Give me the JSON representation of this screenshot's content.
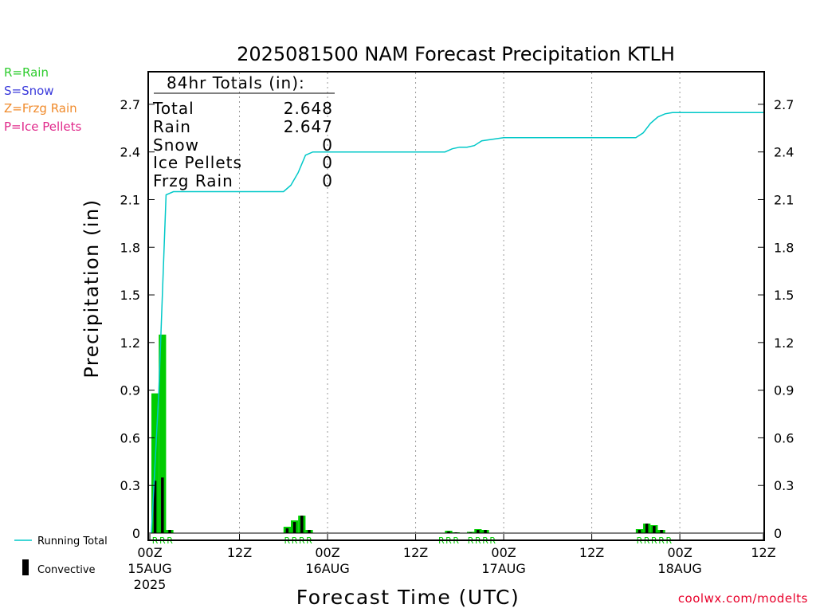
{
  "title": "2025081500 NAM Forecast Precipitation KTLH",
  "ptype_legend": [
    {
      "label": "R=Rain",
      "color": "#2ecc2e"
    },
    {
      "label": "S=Snow",
      "color": "#3a3adb"
    },
    {
      "label": "Z=Frzg Rain",
      "color": "#f08a2a"
    },
    {
      "label": "P=Ice Pellets",
      "color": "#e0288a"
    }
  ],
  "totals_box": {
    "header": "84hr Totals (in):",
    "rows": [
      {
        "label": "Total",
        "value": "2.648"
      },
      {
        "label": "Rain",
        "value": "2.647"
      },
      {
        "label": "Snow",
        "value": "0"
      },
      {
        "label": "Ice Pellets",
        "value": "0"
      },
      {
        "label": "Frzg Rain",
        "value": "0"
      }
    ]
  },
  "bottom_legend": {
    "running_total": "Running Total",
    "convective": "Convective"
  },
  "colors": {
    "rain_bar": "#00cc00",
    "convective_bar": "#000000",
    "running_total": "#00c8c8",
    "rain_marker": "#00cc00",
    "credit": "#e8002a"
  },
  "credit": "coolwx.com/modelts",
  "chart_data": {
    "type": "bar",
    "title": "2025081500 NAM Forecast Precipitation KTLH",
    "ylabel": "Precipitation (in)",
    "xlabel": "Forecast Time (UTC)",
    "ylim": [
      0,
      2.85
    ],
    "yticks": [
      0,
      0.3,
      0.6,
      0.9,
      1.2,
      1.5,
      1.8,
      2.1,
      2.4,
      2.7
    ],
    "ytick_labels": [
      "0",
      "0.3",
      "0.6",
      "0.9",
      "1.2",
      "1.5",
      "1.8",
      "2.1",
      "2.4",
      "2.7"
    ],
    "xlim_hours": [
      0,
      84
    ],
    "xticks": [
      {
        "hour": 0,
        "label": "00Z",
        "sub": [
          "15AUG",
          "2025"
        ]
      },
      {
        "hour": 12,
        "label": "12Z",
        "sub": []
      },
      {
        "hour": 24,
        "label": "00Z",
        "sub": [
          "16AUG"
        ]
      },
      {
        "hour": 36,
        "label": "12Z",
        "sub": []
      },
      {
        "hour": 48,
        "label": "00Z",
        "sub": [
          "17AUG"
        ]
      },
      {
        "hour": 60,
        "label": "12Z",
        "sub": []
      },
      {
        "hour": 72,
        "label": "00Z",
        "sub": [
          "18AUG"
        ]
      },
      {
        "hour": 84,
        "label": "12Z",
        "sub": []
      }
    ],
    "grid": "vertical dotted",
    "bar_hours": [
      0,
      1,
      2,
      18,
      19,
      20,
      21,
      22,
      40,
      41,
      43,
      44,
      45,
      66,
      67,
      68,
      69,
      70
    ],
    "total_precip": [
      0.88,
      1.25,
      0.02,
      0.04,
      0.08,
      0.11,
      0.02,
      0.0,
      0.015,
      0.005,
      0.008,
      0.025,
      0.02,
      0.025,
      0.06,
      0.05,
      0.02,
      0.0
    ],
    "convective_precip": [
      0.33,
      0.35,
      0.02,
      0.03,
      0.07,
      0.11,
      0.02,
      0.0,
      0.01,
      0.005,
      0.005,
      0.02,
      0.02,
      0.02,
      0.06,
      0.045,
      0.02,
      0.0
    ],
    "ptype_markers": [
      {
        "hour": 0,
        "label": "R"
      },
      {
        "hour": 1,
        "label": "R"
      },
      {
        "hour": 2,
        "label": "R"
      },
      {
        "hour": 18,
        "label": "R"
      },
      {
        "hour": 19,
        "label": "R"
      },
      {
        "hour": 20,
        "label": "R"
      },
      {
        "hour": 21,
        "label": "R"
      },
      {
        "hour": 39,
        "label": "R"
      },
      {
        "hour": 40,
        "label": "R"
      },
      {
        "hour": 41,
        "label": "R"
      },
      {
        "hour": 43,
        "label": "R"
      },
      {
        "hour": 44,
        "label": "R"
      },
      {
        "hour": 45,
        "label": "R"
      },
      {
        "hour": 46,
        "label": "R"
      },
      {
        "hour": 66,
        "label": "R"
      },
      {
        "hour": 67,
        "label": "R"
      },
      {
        "hour": 68,
        "label": "R"
      },
      {
        "hour": 69,
        "label": "R"
      },
      {
        "hour": 70,
        "label": "R"
      }
    ],
    "running_total_hours": [
      0,
      1,
      2,
      3,
      18,
      19,
      20,
      21,
      22,
      24,
      40,
      41,
      42,
      43,
      44,
      45,
      48,
      66,
      67,
      68,
      69,
      70,
      71,
      84
    ],
    "running_total_values": [
      0.0,
      0.88,
      2.13,
      2.15,
      2.15,
      2.19,
      2.27,
      2.38,
      2.4,
      2.4,
      2.4,
      2.42,
      2.43,
      2.43,
      2.44,
      2.47,
      2.49,
      2.49,
      2.52,
      2.58,
      2.62,
      2.64,
      2.648,
      2.648
    ]
  }
}
